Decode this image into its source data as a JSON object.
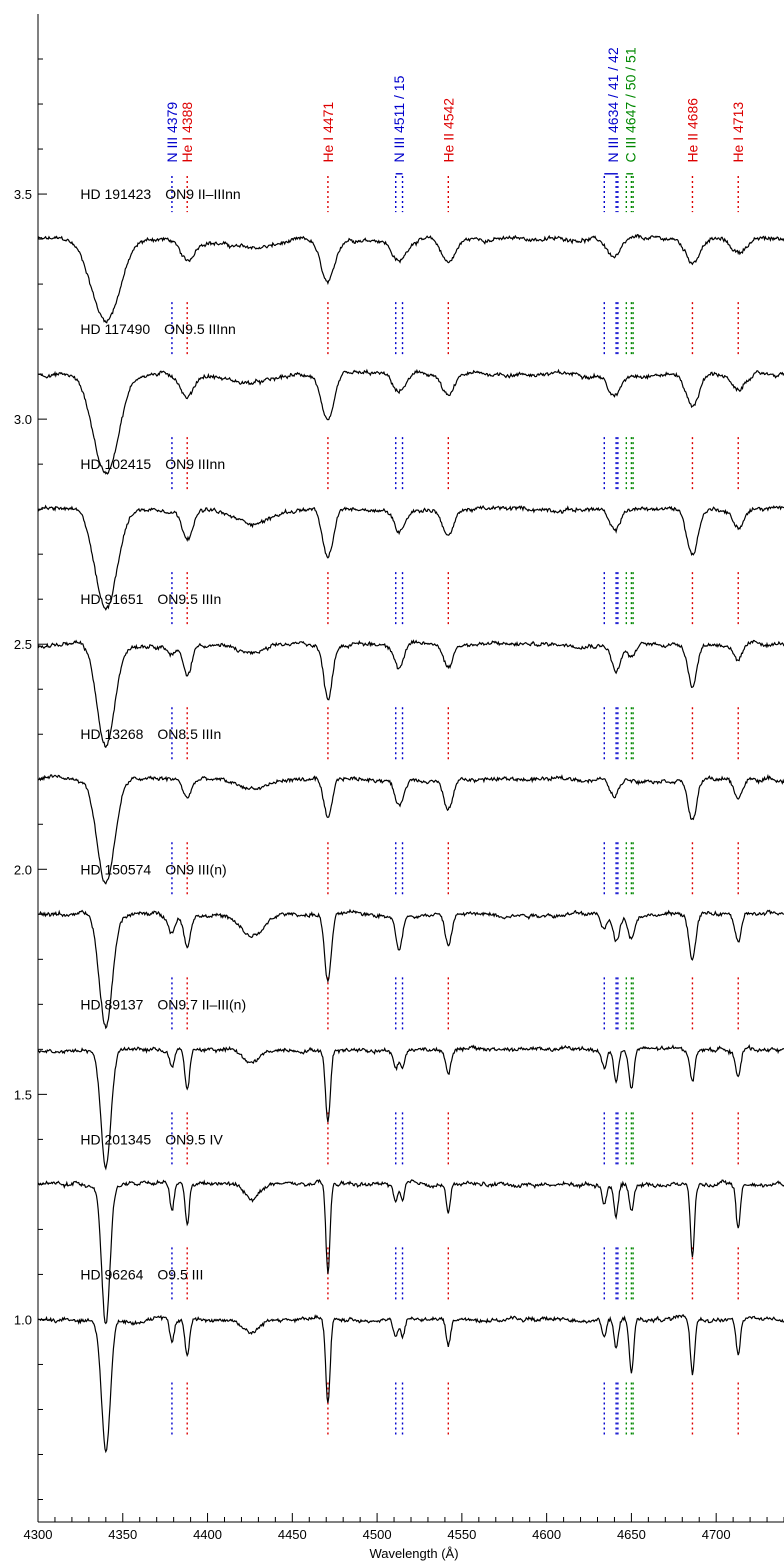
{
  "chart_data": {
    "type": "line",
    "xlabel": "Wavelength (Å)",
    "ylabel": "",
    "xlim": [
      4300,
      4740
    ],
    "ylim": [
      0.55,
      3.9
    ],
    "x_ticks": [
      4300,
      4350,
      4400,
      4450,
      4500,
      4550,
      4600,
      4650,
      4700
    ],
    "x_tick_labels": [
      "4300",
      "4350",
      "4400",
      "4450",
      "4500",
      "4550",
      "4600",
      "4650",
      "4700"
    ],
    "y_ticks": [
      1.0,
      1.5,
      2.0,
      2.5,
      3.0,
      3.5
    ],
    "y_tick_labels": [
      "1.0",
      "1.5",
      "2.0",
      "2.5",
      "3.0",
      "3.5"
    ],
    "grid": false,
    "line_groups": [
      {
        "label": "N III 4379",
        "label_parts": [
          {
            "text": "N III 4379",
            "color": "#0000cc"
          }
        ],
        "color": "#0000cc",
        "wavelengths": [
          4379
        ]
      },
      {
        "label": "He I 4388",
        "label_parts": [
          {
            "text": "He I 4388",
            "color": "#dd0000"
          }
        ],
        "color": "#dd0000",
        "wavelengths": [
          4388
        ]
      },
      {
        "label": "He I 4471",
        "label_parts": [
          {
            "text": "He I 4471",
            "color": "#dd0000"
          }
        ],
        "color": "#dd0000",
        "wavelengths": [
          4471
        ]
      },
      {
        "label": "N III 4511 / 15",
        "label_parts": [
          {
            "text": "N III 4511 / 15",
            "color": "#0000cc"
          }
        ],
        "color": "#0000cc",
        "wavelengths": [
          4511,
          4515
        ]
      },
      {
        "label": "He II 4542",
        "label_parts": [
          {
            "text": "He II 4542",
            "color": "#dd0000"
          }
        ],
        "color": "#dd0000",
        "wavelengths": [
          4542
        ]
      },
      {
        "label": "N III 4634 / 41 / 42",
        "label_parts": [
          {
            "text": "N III 4634 / 41 / 42",
            "color": "#0000cc"
          }
        ],
        "color": "#0000cc",
        "wavelengths": [
          4634,
          4641,
          4642
        ]
      },
      {
        "label": "C III 4647 / 50 / 51",
        "label_parts": [
          {
            "text": "C III 4647 / 50 / 51",
            "color": "#008800"
          }
        ],
        "color": "#008800",
        "wavelengths": [
          4647,
          4650,
          4651
        ]
      },
      {
        "label": "He II 4686",
        "label_parts": [
          {
            "text": "He II 4686",
            "color": "#dd0000"
          }
        ],
        "color": "#dd0000",
        "wavelengths": [
          4686
        ]
      },
      {
        "label": "He I 4713",
        "label_parts": [
          {
            "text": "He I 4713",
            "color": "#dd0000"
          }
        ],
        "color": "#dd0000",
        "wavelengths": [
          4713
        ]
      }
    ],
    "series": [
      {
        "star": "HD 191423",
        "sptype": "ON9 II–IIInn",
        "offset": 3.4,
        "width_factor": 2.6,
        "line_depths": {
          "4340": 0.18,
          "4388": 0.05,
          "4471": 0.1,
          "4513": 0.05,
          "4542": 0.05,
          "4640": 0.04,
          "4686": 0.05,
          "4713": 0.03,
          "4426": 0.02
        }
      },
      {
        "star": "HD 117490",
        "sptype": "ON9.5 IIInn",
        "offset": 3.1,
        "width_factor": 2.3,
        "line_depths": {
          "4340": 0.22,
          "4388": 0.05,
          "4471": 0.11,
          "4513": 0.04,
          "4542": 0.05,
          "4640": 0.05,
          "4686": 0.07,
          "4713": 0.04,
          "4426": 0.02
        }
      },
      {
        "star": "HD 102415",
        "sptype": "ON9 IIInn",
        "offset": 2.8,
        "width_factor": 2.0,
        "line_depths": {
          "4340": 0.22,
          "4388": 0.06,
          "4471": 0.11,
          "4513": 0.05,
          "4542": 0.06,
          "4640": 0.05,
          "4686": 0.1,
          "4713": 0.04,
          "4426": 0.03
        }
      },
      {
        "star": "HD 91651",
        "sptype": "ON9.5 IIIn",
        "offset": 2.5,
        "width_factor": 1.6,
        "line_depths": {
          "4340": 0.23,
          "4379": 0.02,
          "4388": 0.07,
          "4471": 0.12,
          "4513": 0.05,
          "4542": 0.05,
          "4641": 0.06,
          "4650": 0.03,
          "4686": 0.09,
          "4713": 0.04,
          "4426": 0.02
        }
      },
      {
        "star": "HD 13268",
        "sptype": "ON8.5 IIIn",
        "offset": 2.2,
        "width_factor": 1.6,
        "line_depths": {
          "4340": 0.23,
          "4388": 0.04,
          "4471": 0.09,
          "4513": 0.06,
          "4542": 0.07,
          "4640": 0.04,
          "4686": 0.09,
          "4713": 0.04,
          "4426": 0.02
        }
      },
      {
        "star": "HD 150574",
        "sptype": "ON9 III(n)",
        "offset": 1.9,
        "width_factor": 1.2,
        "line_depths": {
          "4340": 0.25,
          "4379": 0.04,
          "4388": 0.07,
          "4471": 0.15,
          "4513": 0.08,
          "4542": 0.07,
          "4634": 0.03,
          "4641": 0.06,
          "4650": 0.05,
          "4686": 0.1,
          "4713": 0.06,
          "4426": 0.05
        }
      },
      {
        "star": "HD 89137",
        "sptype": "ON9.7 II–III(n)",
        "offset": 1.6,
        "width_factor": 0.9,
        "line_depths": {
          "4340": 0.26,
          "4379": 0.04,
          "4388": 0.09,
          "4471": 0.16,
          "4511": 0.04,
          "4515": 0.04,
          "4542": 0.05,
          "4634": 0.04,
          "4641": 0.07,
          "4650": 0.09,
          "4686": 0.07,
          "4713": 0.06,
          "4426": 0.03
        }
      },
      {
        "star": "HD 201345",
        "sptype": "ON9.5 IV",
        "offset": 1.3,
        "width_factor": 0.75,
        "line_depths": {
          "4340": 0.31,
          "4379": 0.06,
          "4388": 0.09,
          "4471": 0.2,
          "4511": 0.04,
          "4515": 0.04,
          "4542": 0.06,
          "4634": 0.04,
          "4641": 0.07,
          "4650": 0.06,
          "4686": 0.16,
          "4713": 0.1,
          "4426": 0.03
        }
      },
      {
        "star": "HD 96264",
        "sptype": "O9.5 III",
        "offset": 1.0,
        "width_factor": 0.8,
        "line_depths": {
          "4340": 0.29,
          "4379": 0.05,
          "4388": 0.08,
          "4471": 0.19,
          "4511": 0.04,
          "4515": 0.04,
          "4542": 0.06,
          "4634": 0.04,
          "4641": 0.06,
          "4650": 0.12,
          "4686": 0.12,
          "4713": 0.08,
          "4426": 0.03
        }
      }
    ]
  }
}
